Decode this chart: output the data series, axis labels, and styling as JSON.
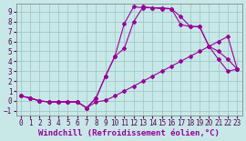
{
  "background_color": "#c8e8e8",
  "grid_color": "#a0c8c8",
  "line_color": "#990099",
  "xlabel": "Windchill (Refroidissement éolien,°C)",
  "xlim": [
    -0.5,
    23.5
  ],
  "ylim": [
    -1.5,
    9.8
  ],
  "xticks": [
    0,
    1,
    2,
    3,
    4,
    5,
    6,
    7,
    8,
    9,
    10,
    11,
    12,
    13,
    14,
    15,
    16,
    17,
    18,
    19,
    20,
    21,
    22,
    23
  ],
  "yticks": [
    -1,
    0,
    1,
    2,
    3,
    4,
    5,
    6,
    7,
    8,
    9
  ],
  "line1_x": [
    0,
    1,
    2,
    3,
    4,
    5,
    6,
    7,
    8,
    9,
    10,
    11,
    12,
    13,
    14,
    15,
    16,
    17,
    18,
    19,
    20,
    21,
    22,
    23
  ],
  "line1_y": [
    0.5,
    0.3,
    -0.0,
    -0.1,
    -0.1,
    -0.1,
    -0.1,
    -0.7,
    -0.1,
    0.05,
    0.5,
    1.0,
    1.5,
    2.0,
    2.5,
    3.0,
    3.5,
    4.0,
    4.5,
    5.0,
    5.5,
    6.0,
    6.5,
    3.2
  ],
  "line2_x": [
    0,
    1,
    2,
    3,
    4,
    5,
    6,
    7,
    8,
    9,
    10,
    11,
    12,
    13,
    14,
    15,
    16,
    17,
    18,
    19,
    20,
    21,
    22,
    23
  ],
  "line2_y": [
    0.5,
    0.3,
    -0.0,
    -0.1,
    -0.1,
    -0.1,
    -0.1,
    -0.7,
    0.3,
    2.5,
    4.5,
    5.3,
    8.0,
    9.5,
    9.4,
    9.4,
    9.3,
    7.7,
    7.5,
    7.5,
    5.5,
    5.0,
    4.2,
    3.2
  ],
  "line3_x": [
    0,
    1,
    2,
    3,
    4,
    5,
    6,
    7,
    8,
    9,
    10,
    11,
    12,
    13,
    14,
    15,
    16,
    17,
    18,
    19,
    20,
    21,
    22,
    23
  ],
  "line3_y": [
    0.5,
    0.3,
    -0.0,
    -0.1,
    -0.1,
    -0.1,
    -0.1,
    -0.7,
    0.3,
    2.5,
    4.5,
    7.8,
    9.5,
    9.4,
    9.4,
    9.3,
    9.3,
    8.5,
    7.5,
    7.5,
    5.5,
    4.2,
    3.0,
    3.2
  ],
  "marker": "D",
  "markersize": 2,
  "linewidth": 0.8,
  "tick_fontsize": 5.5,
  "xlabel_fontsize": 6.5
}
